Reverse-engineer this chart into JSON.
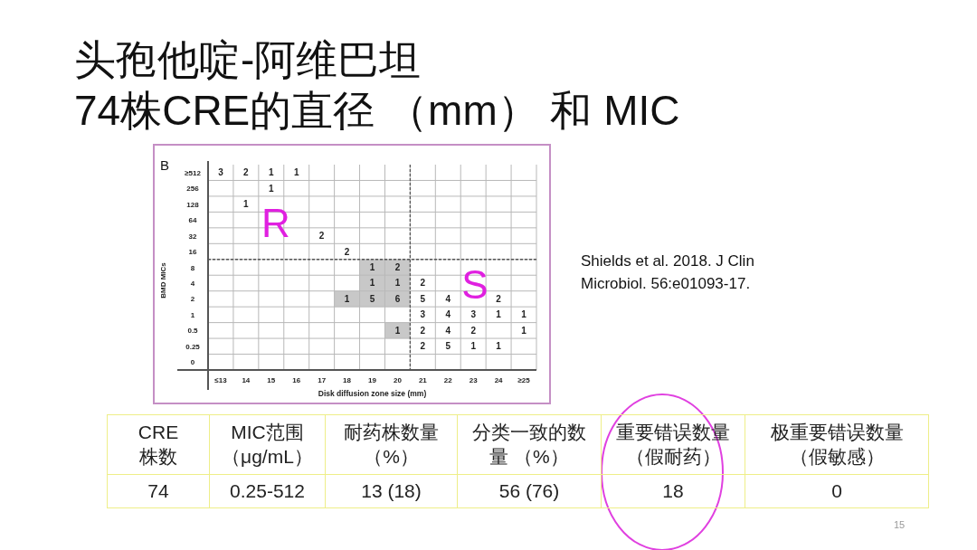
{
  "chart_data": [
    {
      "type": "heatmap",
      "title": "头孢他啶-阿维巴坦",
      "subtitle": "74株CRE的直径 （mm） 和 MIC",
      "xlabel": "Disk diffusion zone size (mm)",
      "ylabel": "BMD MICs",
      "categories": [
        "≤13",
        "14",
        "15",
        "16",
        "17",
        "18",
        "19",
        "20",
        "21",
        "22",
        "23",
        "24",
        "≥25"
      ],
      "y_categories": [
        "≥512",
        "256",
        "128",
        "64",
        "32",
        "16",
        "8",
        "4",
        "2",
        "1",
        "0.5",
        "0.25",
        "0"
      ],
      "cells": [
        [
          3,
          2,
          1,
          1,
          null,
          null,
          null,
          null,
          null,
          null,
          null,
          null,
          null
        ],
        [
          null,
          null,
          1,
          null,
          null,
          null,
          null,
          null,
          null,
          null,
          null,
          null,
          null
        ],
        [
          null,
          1,
          null,
          null,
          null,
          null,
          null,
          null,
          null,
          null,
          null,
          null,
          null
        ],
        [
          null,
          null,
          null,
          null,
          null,
          null,
          null,
          null,
          null,
          null,
          null,
          null,
          null
        ],
        [
          null,
          null,
          null,
          null,
          2,
          null,
          null,
          null,
          null,
          null,
          null,
          null,
          null
        ],
        [
          null,
          null,
          null,
          null,
          null,
          2,
          null,
          null,
          null,
          null,
          null,
          null,
          null
        ],
        [
          null,
          null,
          null,
          null,
          null,
          null,
          1,
          2,
          null,
          null,
          null,
          null,
          null
        ],
        [
          null,
          null,
          null,
          null,
          null,
          null,
          1,
          1,
          2,
          null,
          null,
          null,
          null
        ],
        [
          null,
          null,
          null,
          null,
          null,
          1,
          5,
          6,
          5,
          4,
          null,
          2,
          null
        ],
        [
          null,
          null,
          null,
          null,
          null,
          null,
          null,
          null,
          3,
          4,
          3,
          1,
          1
        ],
        [
          null,
          null,
          null,
          null,
          null,
          null,
          null,
          1,
          2,
          4,
          2,
          null,
          1
        ],
        [
          null,
          null,
          null,
          null,
          null,
          null,
          null,
          null,
          2,
          5,
          1,
          1,
          null
        ],
        [
          null,
          null,
          null,
          null,
          null,
          null,
          null,
          null,
          null,
          null,
          null,
          null,
          null
        ]
      ],
      "data_labels": true,
      "grid": true,
      "annotations": [
        "B",
        "R",
        "S",
        "Shields et al. 2018. J Clin Microbiol. 56:e01093-17."
      ]
    },
    {
      "type": "other",
      "annotations": [
        "CRE\n株数",
        "MIC范围（μg/mL）",
        "耐药株数量（%）",
        "分类一致的数量 （%）",
        "重要错误数量（假耐药）",
        "极重要错误数量（假敏感）",
        "74",
        "0.25-512",
        "13 (18)",
        "56 (76)",
        "18",
        "0",
        "15"
      ]
    }
  ]
}
